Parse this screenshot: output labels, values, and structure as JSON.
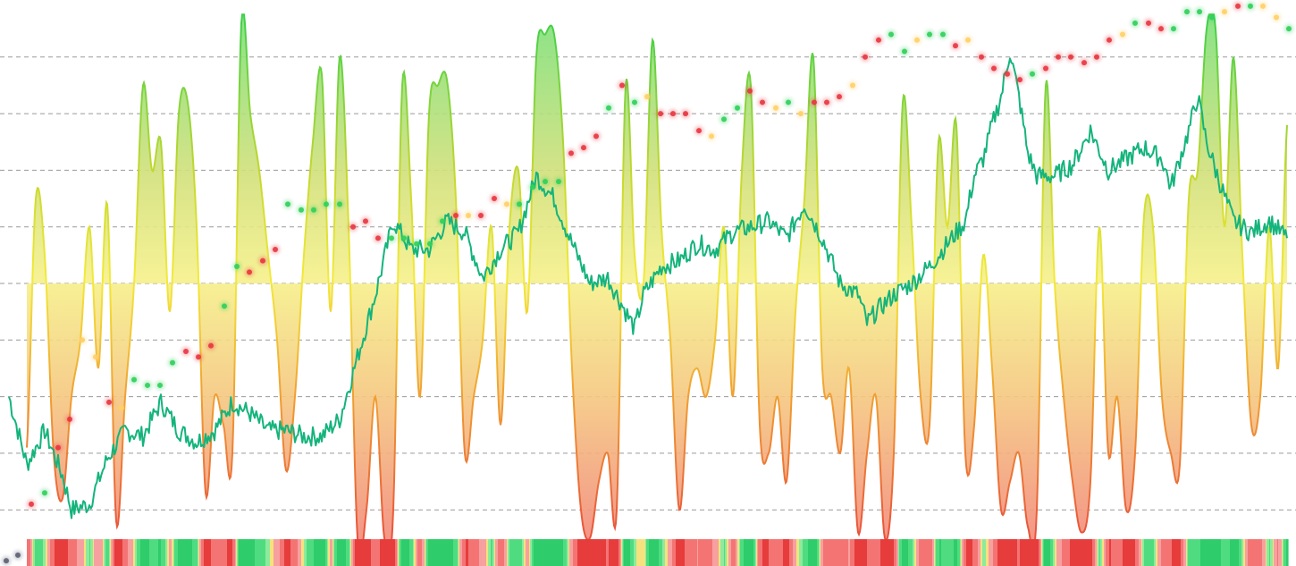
{
  "chart_data": {
    "type": "area",
    "title": "",
    "xlabel": "",
    "ylabel": "",
    "grid": true,
    "legend": "none",
    "ylim": [
      -4.95,
      5.0
    ],
    "gridlines": [
      -4,
      -3,
      -2,
      -1,
      0,
      1,
      2,
      3,
      4
    ],
    "colors": {
      "osc_high": "#3ecf4a",
      "osc_mid_high": "#c6d82c",
      "osc_zero": "#f3ea3a",
      "osc_mid_low": "#f0a032",
      "osc_low": "#e8503a",
      "price_line": "#14b47c",
      "dot_red": "#e8353f",
      "dot_green": "#2fcf5a",
      "dot_yellow": "#ffcf66",
      "dot_grey": "#5a6070",
      "grid": "#9a9a9a"
    },
    "oscillator": {
      "values": [
        -2.9,
        1.5,
        0.5,
        -3.0,
        -3.8,
        -2.0,
        -1.0,
        1.0,
        -1.5,
        1.4,
        -4.2,
        -2.0,
        0.0,
        3.5,
        2.0,
        2.5,
        -0.5,
        3.0,
        3.2,
        1.0,
        -3.7,
        -2.0,
        -2.5,
        -3.0,
        4.6,
        3.0,
        2.0,
        0.5,
        -1.0,
        -3.3,
        -2.0,
        0.5,
        2.5,
        3.7,
        -0.5,
        4.0,
        1.0,
        -4.5,
        -4.0,
        -2.0,
        -4.5,
        -4.0,
        3.5,
        1.5,
        -2.0,
        3.0,
        3.5,
        3.6,
        1.5,
        -3.0,
        -2.0,
        -1.0,
        1.0,
        -2.5,
        1.0,
        2.0,
        -0.5,
        4.0,
        4.4,
        4.4,
        2.5,
        -1.5,
        -4.0,
        -4.5,
        -3.5,
        -3.0,
        -4.0,
        3.5,
        0.5,
        0.0,
        4.3,
        1.0,
        -1.0,
        -4.0,
        -2.0,
        -1.5,
        -2.0,
        -1.0,
        1.0,
        -2.0,
        2.0,
        3.5,
        -2.5,
        -3.0,
        -2.0,
        -3.5,
        -0.5,
        1.5,
        4.0,
        -1.5,
        -2.0,
        -3.0,
        -1.5,
        -4.4,
        -3.0,
        -2.0,
        -4.5,
        -3.0,
        3.2,
        1.0,
        -2.0,
        -2.5,
        2.5,
        1.0,
        2.8,
        -3.0,
        -2.5,
        0.5,
        -1.5,
        -4.0,
        -3.5,
        -3.0,
        -4.3,
        -4.0,
        3.5,
        0.0,
        -2.0,
        -3.5,
        -4.4,
        -3.5,
        1.0,
        -3.0,
        -2.0,
        -4.0,
        -3.0,
        1.2,
        1.0,
        -2.0,
        -3.0,
        -3.2,
        1.5,
        2.0,
        4.5,
        4.5,
        1.0,
        4.0,
        0.5,
        -2.5,
        -2.0,
        1.0,
        -1.5,
        2.8
      ]
    },
    "price": {
      "points": [
        [
          -2,
          -2.0
        ],
        [
          0,
          -3.2
        ],
        [
          2,
          -2.6
        ],
        [
          4,
          -3.4
        ],
        [
          5,
          -4.0
        ],
        [
          7,
          -3.9
        ],
        [
          9,
          -3.1
        ],
        [
          11,
          -2.6
        ],
        [
          13,
          -2.7
        ],
        [
          15,
          -2.1
        ],
        [
          17,
          -2.6
        ],
        [
          19,
          -2.8
        ],
        [
          21,
          -2.6
        ],
        [
          23,
          -2.1
        ],
        [
          25,
          -2.3
        ],
        [
          27,
          -2.6
        ],
        [
          29,
          -2.6
        ],
        [
          31,
          -2.7
        ],
        [
          33,
          -2.7
        ],
        [
          35,
          -2.4
        ],
        [
          37,
          -1.3
        ],
        [
          39,
          -0.2
        ],
        [
          41,
          1.1
        ],
        [
          43,
          0.6
        ],
        [
          45,
          0.6
        ],
        [
          47,
          1.1
        ],
        [
          49,
          0.9
        ],
        [
          51,
          0.1
        ],
        [
          53,
          0.6
        ],
        [
          55,
          0.9
        ],
        [
          57,
          1.9
        ],
        [
          59,
          1.5
        ],
        [
          61,
          0.7
        ],
        [
          63,
          0.0
        ],
        [
          65,
          0.1
        ],
        [
          67,
          -0.5
        ],
        [
          68,
          -0.8
        ],
        [
          69,
          -0.2
        ],
        [
          71,
          0.3
        ],
        [
          73,
          0.4
        ],
        [
          75,
          0.7
        ],
        [
          77,
          0.6
        ],
        [
          79,
          0.9
        ],
        [
          81,
          1.0
        ],
        [
          83,
          1.1
        ],
        [
          85,
          0.8
        ],
        [
          87,
          1.4
        ],
        [
          89,
          0.8
        ],
        [
          91,
          0.0
        ],
        [
          93,
          -0.2
        ],
        [
          94,
          -0.7
        ],
        [
          95,
          -0.5
        ],
        [
          97,
          -0.2
        ],
        [
          99,
          0.0
        ],
        [
          101,
          0.3
        ],
        [
          103,
          0.7
        ],
        [
          105,
          1.1
        ],
        [
          106,
          1.9
        ],
        [
          107,
          2.2
        ],
        [
          108,
          2.8
        ],
        [
          109,
          3.3
        ],
        [
          110,
          4.1
        ],
        [
          111,
          3.3
        ],
        [
          112,
          2.3
        ],
        [
          113,
          1.9
        ],
        [
          115,
          1.9
        ],
        [
          117,
          2.1
        ],
        [
          119,
          2.7
        ],
        [
          121,
          2.0
        ],
        [
          123,
          2.2
        ],
        [
          125,
          2.4
        ],
        [
          127,
          2.2
        ],
        [
          128,
          1.7
        ],
        [
          130,
          2.7
        ],
        [
          131,
          3.3
        ],
        [
          132,
          2.5
        ],
        [
          133,
          2.0
        ],
        [
          135,
          1.1
        ],
        [
          137,
          0.9
        ],
        [
          139,
          1.1
        ],
        [
          141,
          0.8
        ]
      ]
    },
    "signal_dots": [
      [
        -2.3,
        -4.9,
        "grey"
      ],
      [
        -1,
        -4.8,
        "grey"
      ],
      [
        0.5,
        -3.9,
        "red"
      ],
      [
        2,
        -3.7,
        "green"
      ],
      [
        3.5,
        -2.9,
        "red"
      ],
      [
        4.8,
        -2.4,
        "red"
      ],
      [
        6.2,
        -1.0,
        "yellow"
      ],
      [
        7.7,
        -1.3,
        "yellow"
      ],
      [
        9.2,
        -2.1,
        "red"
      ],
      [
        10.6,
        -2.2,
        "yellow"
      ],
      [
        12,
        -1.7,
        "green"
      ],
      [
        13.5,
        -1.8,
        "green"
      ],
      [
        14.9,
        -1.8,
        "green"
      ],
      [
        16.3,
        -1.4,
        "green"
      ],
      [
        17.8,
        -1.2,
        "red"
      ],
      [
        19.2,
        -1.3,
        "red"
      ],
      [
        20.6,
        -1.1,
        "red"
      ],
      [
        22.1,
        -0.4,
        "green"
      ],
      [
        23.5,
        0.3,
        "green"
      ],
      [
        24.9,
        0.2,
        "red"
      ],
      [
        26.4,
        0.4,
        "red"
      ],
      [
        27.8,
        0.6,
        "red"
      ],
      [
        29.2,
        1.4,
        "green"
      ],
      [
        30.7,
        1.3,
        "green"
      ],
      [
        32.1,
        1.3,
        "green"
      ],
      [
        33.5,
        1.4,
        "green"
      ],
      [
        35,
        1.4,
        "green"
      ],
      [
        36.5,
        1.0,
        "red"
      ],
      [
        37.9,
        1.1,
        "red"
      ],
      [
        39.3,
        0.8,
        "red"
      ],
      [
        40.8,
        0.8,
        "green"
      ],
      [
        42.2,
        0.8,
        "green"
      ],
      [
        43.6,
        0.7,
        "green"
      ],
      [
        45.1,
        0.7,
        "green"
      ],
      [
        46.5,
        1.1,
        "green"
      ],
      [
        48,
        1.2,
        "red"
      ],
      [
        49.4,
        1.2,
        "yellow"
      ],
      [
        50.8,
        1.2,
        "red"
      ],
      [
        52.3,
        1.5,
        "red"
      ],
      [
        53.7,
        1.4,
        "yellow"
      ],
      [
        55.1,
        1.4,
        "green"
      ],
      [
        56.6,
        1.7,
        "green"
      ],
      [
        58,
        1.8,
        "green"
      ],
      [
        59.5,
        1.8,
        "green"
      ],
      [
        60.9,
        2.3,
        "red"
      ],
      [
        62.3,
        2.4,
        "red"
      ],
      [
        63.7,
        2.6,
        "red"
      ],
      [
        65.1,
        3.1,
        "green"
      ],
      [
        66.6,
        3.5,
        "red"
      ],
      [
        68,
        3.2,
        "green"
      ],
      [
        69.4,
        3.3,
        "yellow"
      ],
      [
        70.9,
        3.0,
        "red"
      ],
      [
        72.3,
        3.0,
        "red"
      ],
      [
        73.7,
        3.0,
        "red"
      ],
      [
        75.2,
        2.7,
        "red"
      ],
      [
        76.6,
        2.6,
        "yellow"
      ],
      [
        78,
        2.9,
        "green"
      ],
      [
        79.5,
        3.1,
        "green"
      ],
      [
        80.9,
        3.4,
        "red"
      ],
      [
        82.3,
        3.2,
        "red"
      ],
      [
        83.8,
        3.1,
        "yellow"
      ],
      [
        85.2,
        3.2,
        "green"
      ],
      [
        86.6,
        3.0,
        "yellow"
      ],
      [
        88.1,
        3.2,
        "red"
      ],
      [
        89.5,
        3.2,
        "red"
      ],
      [
        90.9,
        3.3,
        "red"
      ],
      [
        92.4,
        3.5,
        "yellow"
      ],
      [
        93.8,
        4.0,
        "red"
      ],
      [
        95.3,
        4.3,
        "red"
      ],
      [
        96.7,
        4.4,
        "green"
      ],
      [
        98.2,
        4.1,
        "green"
      ],
      [
        99.6,
        4.3,
        "yellow"
      ],
      [
        101,
        4.4,
        "green"
      ],
      [
        102.5,
        4.4,
        "green"
      ],
      [
        103.9,
        4.2,
        "red"
      ],
      [
        105.3,
        4.3,
        "yellow"
      ],
      [
        106.8,
        4.0,
        "red"
      ],
      [
        108.2,
        3.8,
        "red"
      ],
      [
        109.7,
        3.7,
        "red"
      ],
      [
        111.1,
        3.6,
        "red"
      ],
      [
        112.5,
        3.7,
        "green"
      ],
      [
        114,
        3.8,
        "red"
      ],
      [
        115.4,
        4.0,
        "red"
      ],
      [
        116.8,
        4.0,
        "red"
      ],
      [
        118.3,
        3.9,
        "red"
      ],
      [
        119.7,
        4.0,
        "red"
      ],
      [
        121.1,
        4.3,
        "red"
      ],
      [
        122.6,
        4.4,
        "yellow"
      ],
      [
        124,
        4.6,
        "green"
      ],
      [
        125.5,
        4.6,
        "red"
      ],
      [
        126.9,
        4.5,
        "red"
      ],
      [
        128.3,
        4.5,
        "green"
      ],
      [
        129.8,
        4.8,
        "green"
      ],
      [
        131.2,
        4.8,
        "green"
      ],
      [
        132.6,
        4.7,
        "green"
      ],
      [
        134,
        4.8,
        "yellow"
      ],
      [
        135.5,
        4.9,
        "red"
      ],
      [
        136.9,
        4.9,
        "green"
      ],
      [
        138.3,
        4.9,
        "yellow"
      ],
      [
        139.8,
        4.7,
        "yellow"
      ],
      [
        141.2,
        4.5,
        "green"
      ]
    ]
  }
}
